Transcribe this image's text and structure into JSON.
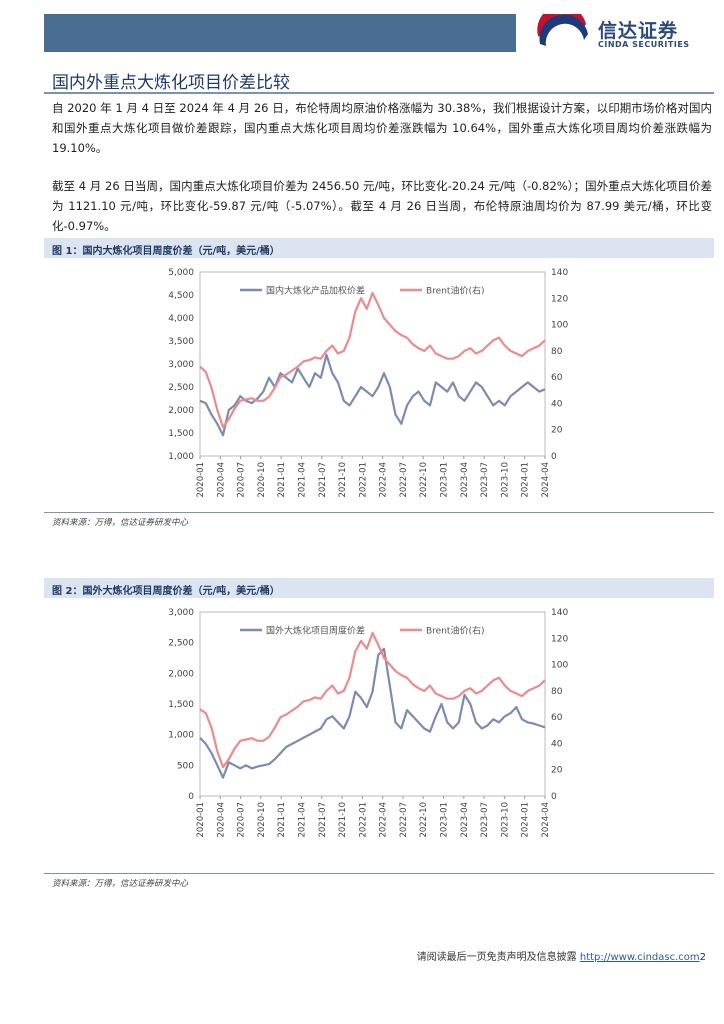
{
  "header": {
    "logo_cn": "信达证券",
    "logo_en": "CINDA SECURITIES"
  },
  "section_title": "国内外重点大炼化项目价差比较",
  "paragraphs": [
    "自 2020 年 1 月 4 日至 2024 年 4 月 26 日，布伦特周均原油价格涨幅为 30.38%，我们根据设计方案，以印期市场价格对国内和国外重点大炼化项目做价差跟踪，国内重点大炼化项目周均价差涨跌幅为 10.64%，国外重点大炼化项目周均价差涨跌幅为 19.10%。",
    "截至 4 月 26 日当周，国内重点大炼化项目价差为 2456.50 元/吨，环比变化-20.24 元/吨（-0.82%）；国外重点大炼化项目价差为 1121.10 元/吨，环比变化-59.87 元/吨（-5.07%）。截至 4 月 26 日当周，布伦特原油周均价为 87.99 美元/桶，环比变化-0.97%。"
  ],
  "figure1": {
    "caption": "图 1：国内大炼化项目周度价差（元/吨，美元/桶）",
    "source": "资料来源：万得，信达证券研发中心"
  },
  "figure2": {
    "caption": "图 2：国外大炼化项目周度价差（元/吨，美元/桶）",
    "source": "资料来源：万得，信达证券研发中心"
  },
  "footer": {
    "text": "请阅读最后一页免责声明及信息披露 ",
    "link": "http://www.cindasc.com",
    "page": "2"
  },
  "chart_data": [
    {
      "type": "line",
      "title": "国内大炼化项目周度价差（元/吨，美元/桶）",
      "x_ticks": [
        "2020-01",
        "2020-04",
        "2020-07",
        "2020-10",
        "2021-01",
        "2021-04",
        "2021-07",
        "2021-10",
        "2022-01",
        "2022-04",
        "2022-07",
        "2022-10",
        "2023-01",
        "2023-04",
        "2023-07",
        "2023-10",
        "2024-01",
        "2024-04"
      ],
      "ylim_left": [
        1000,
        5000
      ],
      "yticks_left": [
        "1,000",
        "1,500",
        "2,000",
        "2,500",
        "3,000",
        "3,500",
        "4,000",
        "4,500",
        "5,000"
      ],
      "ylim_right": [
        0,
        140
      ],
      "yticks_right": [
        "0",
        "20",
        "40",
        "60",
        "80",
        "100",
        "120",
        "140"
      ],
      "legend_loc": "top",
      "series": [
        {
          "name": "国内大炼化产品加权价差",
          "axis": "left",
          "color": "#7b8bb2",
          "values": [
            2200,
            2150,
            1900,
            1700,
            1450,
            2000,
            2100,
            2300,
            2200,
            2150,
            2250,
            2400,
            2700,
            2500,
            2800,
            2700,
            2600,
            2900,
            2700,
            2500,
            2800,
            2700,
            3200,
            2800,
            2600,
            2200,
            2100,
            2300,
            2500,
            2400,
            2300,
            2500,
            2800,
            2500,
            1900,
            1700,
            2100,
            2300,
            2400,
            2200,
            2100,
            2600,
            2500,
            2400,
            2600,
            2300,
            2200,
            2400,
            2600,
            2500,
            2300,
            2100,
            2200,
            2100,
            2300,
            2400,
            2500,
            2600,
            2500,
            2400,
            2450
          ]
        },
        {
          "name": "Brent油价(右)",
          "axis": "right",
          "color": "#f08a8a",
          "values": [
            68,
            64,
            52,
            35,
            22,
            28,
            36,
            42,
            43,
            44,
            42,
            42,
            45,
            52,
            60,
            62,
            65,
            68,
            72,
            73,
            75,
            74,
            80,
            84,
            78,
            80,
            90,
            110,
            120,
            112,
            124,
            115,
            105,
            100,
            95,
            92,
            90,
            85,
            82,
            80,
            84,
            78,
            76,
            74,
            74,
            76,
            80,
            82,
            78,
            80,
            84,
            88,
            90,
            84,
            80,
            78,
            76,
            80,
            82,
            84,
            88
          ]
        }
      ]
    },
    {
      "type": "line",
      "title": "国外大炼化项目周度价差（元/吨，美元/桶）",
      "x_ticks": [
        "2020-01",
        "2020-04",
        "2020-07",
        "2020-10",
        "2021-01",
        "2021-04",
        "2021-07",
        "2021-10",
        "2022-01",
        "2022-04",
        "2022-07",
        "2022-10",
        "2023-01",
        "2023-04",
        "2023-07",
        "2023-10",
        "2024-01",
        "2024-04"
      ],
      "ylim_left": [
        0,
        3000
      ],
      "yticks_left": [
        "0",
        "500",
        "1,000",
        "1,500",
        "2,000",
        "2,500",
        "3,000"
      ],
      "ylim_right": [
        0,
        140
      ],
      "yticks_right": [
        "0",
        "20",
        "40",
        "60",
        "80",
        "100",
        "120",
        "140"
      ],
      "legend_loc": "top",
      "series": [
        {
          "name": "国外大炼化项目周度价差",
          "axis": "left",
          "color": "#7b8bb2",
          "values": [
            950,
            850,
            700,
            500,
            300,
            550,
            500,
            450,
            500,
            450,
            480,
            500,
            520,
            600,
            700,
            800,
            850,
            900,
            950,
            1000,
            1050,
            1100,
            1250,
            1300,
            1200,
            1100,
            1300,
            1700,
            1600,
            1450,
            1700,
            2300,
            2400,
            1800,
            1200,
            1100,
            1400,
            1300,
            1200,
            1100,
            1050,
            1300,
            1500,
            1200,
            1100,
            1200,
            1650,
            1500,
            1200,
            1100,
            1150,
            1250,
            1200,
            1300,
            1350,
            1450,
            1250,
            1200,
            1180,
            1150,
            1120
          ]
        },
        {
          "name": "Brent油价(右)",
          "axis": "right",
          "color": "#f08a8a",
          "values": [
            66,
            63,
            52,
            34,
            22,
            28,
            36,
            42,
            43,
            44,
            42,
            42,
            45,
            52,
            60,
            62,
            65,
            68,
            72,
            73,
            75,
            74,
            80,
            84,
            78,
            80,
            90,
            110,
            118,
            112,
            124,
            115,
            105,
            100,
            95,
            92,
            90,
            85,
            82,
            80,
            84,
            78,
            76,
            74,
            74,
            76,
            80,
            82,
            78,
            80,
            84,
            88,
            90,
            84,
            80,
            78,
            76,
            80,
            82,
            84,
            88
          ]
        }
      ]
    }
  ]
}
